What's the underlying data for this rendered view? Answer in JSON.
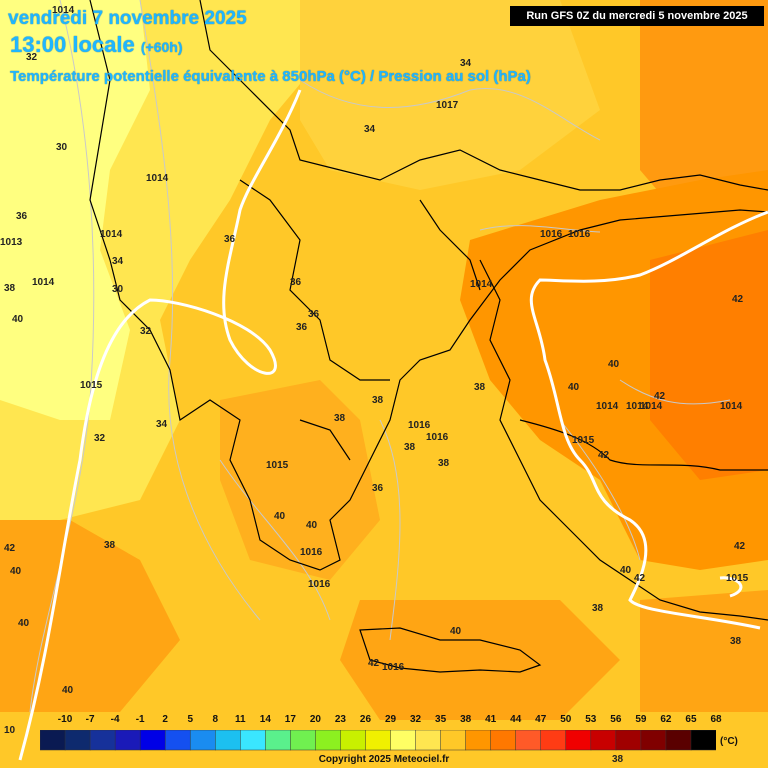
{
  "header": {
    "date_line": "vendredi 7 novembre 2025",
    "time_line": "13:00 locale",
    "offset": "(+60h)",
    "subtitle": "Température potentielle équivalente à 850hPa (°C) / Pression au sol (hPa)",
    "run": "Run GFS 0Z du mercredi 5 novembre 2025"
  },
  "contour_labels": [
    "1014",
    "32",
    "30",
    "1014",
    "34",
    "1017",
    "34",
    "1014",
    "36",
    "1016",
    "36",
    "1013",
    "36",
    "1014",
    "1014",
    "38",
    "34",
    "30",
    "1016",
    "36",
    "42",
    "40",
    "32",
    "36",
    "40",
    "1015",
    "38",
    "40",
    "1014",
    "1014",
    "10",
    "1014",
    "42",
    "1014",
    "38",
    "1016",
    "1016",
    "1015",
    "42",
    "32",
    "34",
    "38",
    "38",
    "38",
    "36",
    "1015",
    "40",
    "40",
    "42",
    "1016",
    "40",
    "42",
    "1016",
    "38",
    "38",
    "42",
    "40",
    "1016",
    "40",
    "40",
    "40",
    "38",
    "1015",
    "42",
    "38"
  ],
  "legend": {
    "ticks": [
      "-10",
      "-7",
      "-4",
      "-1",
      "2",
      "5",
      "8",
      "11",
      "14",
      "17",
      "20",
      "23",
      "26",
      "29",
      "32",
      "35",
      "38",
      "41",
      "44",
      "47",
      "50",
      "53",
      "56",
      "59",
      "62",
      "65",
      "68"
    ],
    "colors": [
      "#0a1a52",
      "#0e2a6e",
      "#16319a",
      "#1a1ab8",
      "#0000e6",
      "#1450f0",
      "#1a8cf0",
      "#1cc0f0",
      "#3ae6ff",
      "#5af08c",
      "#70f050",
      "#8cf020",
      "#c8f000",
      "#f0f000",
      "#ffff64",
      "#ffe650",
      "#ffc828",
      "#ff9600",
      "#ff7800",
      "#ff5a28",
      "#ff3c14",
      "#f00000",
      "#c80000",
      "#a00000",
      "#800000",
      "#5a0000",
      "#000000"
    ],
    "unit": "(°C)"
  },
  "copyright": "Copyright 2025 Meteociel.fr",
  "theme": {
    "title_color": "#1fb6ff",
    "background": "#f5a800"
  }
}
